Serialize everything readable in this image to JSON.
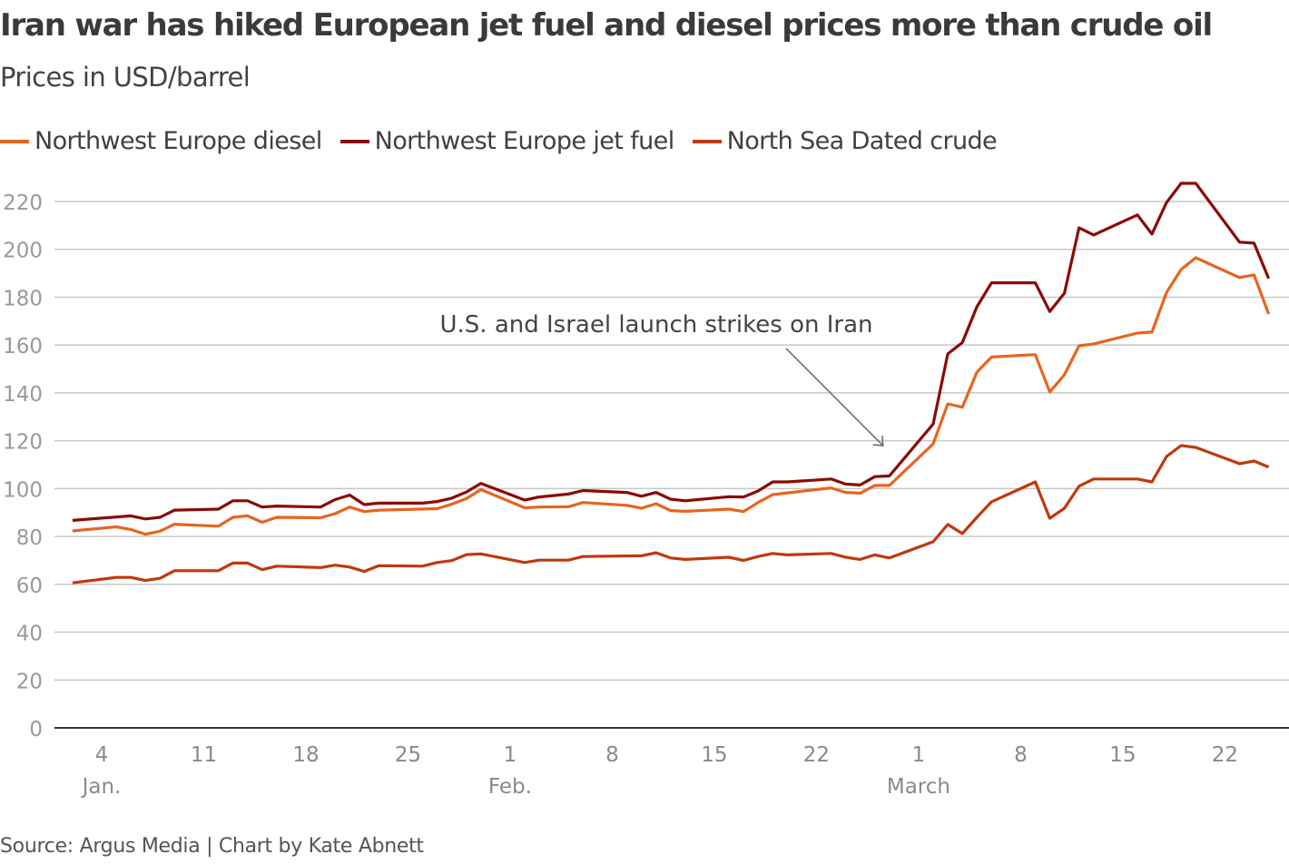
{
  "header": {
    "title": "Iran war has hiked European jet fuel and diesel prices more than crude oil",
    "subtitle": "Prices in USD/barrel"
  },
  "footer": {
    "source": "Source: Argus Media | Chart by Kate Abnett"
  },
  "chart_data": {
    "type": "line",
    "title": "Iran war has hiked European jet fuel and diesel prices more than crude oil",
    "ylabel": "Prices in USD/barrel",
    "ylim": [
      0,
      220
    ],
    "yticks": [
      "0",
      "20",
      "40",
      "60",
      "80",
      "100",
      "120",
      "140",
      "160",
      "180",
      "200",
      "220"
    ],
    "xticks": [
      {
        "date": "Jan 4",
        "label": "4",
        "month": "Jan."
      },
      {
        "date": "Jan 11",
        "label": "11",
        "month": ""
      },
      {
        "date": "Jan 18",
        "label": "18",
        "month": ""
      },
      {
        "date": "Jan 25",
        "label": "25",
        "month": ""
      },
      {
        "date": "Feb 1",
        "label": "1",
        "month": "Feb."
      },
      {
        "date": "Feb 8",
        "label": "8",
        "month": ""
      },
      {
        "date": "Feb 15",
        "label": "15",
        "month": ""
      },
      {
        "date": "Feb 22",
        "label": "22",
        "month": ""
      },
      {
        "date": "Mar 1",
        "label": "1",
        "month": "March"
      },
      {
        "date": "Mar 8",
        "label": "8",
        "month": ""
      },
      {
        "date": "Mar 15",
        "label": "15",
        "month": ""
      },
      {
        "date": "Mar 22",
        "label": "22",
        "month": ""
      }
    ],
    "grid": true,
    "legend": "top-left",
    "annotation": {
      "text": "U.S. and Israel launch strikes on Iran",
      "date": "Feb 27"
    },
    "series": [
      {
        "name": "Northwest Europe diesel",
        "color": "#e8641e",
        "points": [
          [
            "Jan 2",
            82.3
          ],
          [
            "Jan 5",
            84
          ],
          [
            "Jan 6",
            82.9
          ],
          [
            "Jan 7",
            80.9
          ],
          [
            "Jan 8",
            82.2
          ],
          [
            "Jan 9",
            85.1
          ],
          [
            "Jan 12",
            84.3
          ],
          [
            "Jan 13",
            88
          ],
          [
            "Jan 14",
            88.6
          ],
          [
            "Jan 15",
            85.9
          ],
          [
            "Jan 16",
            88
          ],
          [
            "Jan 19",
            87.8
          ],
          [
            "Jan 20",
            89.5
          ],
          [
            "Jan 21",
            92.3
          ],
          [
            "Jan 22",
            90.4
          ],
          [
            "Jan 23",
            91
          ],
          [
            "Jan 27",
            91.6
          ],
          [
            "Jan 28",
            93.5
          ],
          [
            "Jan 29",
            95.8
          ],
          [
            "Jan 30",
            99.6
          ],
          [
            "Feb 2",
            92
          ],
          [
            "Feb 3",
            92.3
          ],
          [
            "Feb 5",
            92.4
          ],
          [
            "Feb 6",
            94.2
          ],
          [
            "Feb 9",
            93
          ],
          [
            "Feb 10",
            91.8
          ],
          [
            "Feb 11",
            93.7
          ],
          [
            "Feb 12",
            90.8
          ],
          [
            "Feb 13",
            90.5
          ],
          [
            "Feb 16",
            91.4
          ],
          [
            "Feb 17",
            90.4
          ],
          [
            "Feb 18",
            94.2
          ],
          [
            "Feb 19",
            97.5
          ],
          [
            "Feb 23",
            100.3
          ],
          [
            "Feb 24",
            98.4
          ],
          [
            "Feb 25",
            98.1
          ],
          [
            "Feb 26",
            101.3
          ],
          [
            "Feb 27",
            101.3
          ],
          [
            "Mar 2",
            118.7
          ],
          [
            "Mar 3",
            135.4
          ],
          [
            "Mar 4",
            134
          ],
          [
            "Mar 5",
            148.7
          ],
          [
            "Mar 6",
            155
          ],
          [
            "Mar 9",
            156
          ],
          [
            "Mar 10",
            140.4
          ],
          [
            "Mar 11",
            147.6
          ],
          [
            "Mar 12",
            159.7
          ],
          [
            "Mar 13",
            160.5
          ],
          [
            "Mar 16",
            165
          ],
          [
            "Mar 17",
            165.4
          ],
          [
            "Mar 18",
            182
          ],
          [
            "Mar 19",
            191.6
          ],
          [
            "Mar 20",
            196.5
          ],
          [
            "Mar 23",
            188.2
          ],
          [
            "Mar 24",
            189.3
          ],
          [
            "Mar 25",
            173
          ]
        ]
      },
      {
        "name": "Northwest Europe jet fuel",
        "color": "#8a0a05",
        "points": [
          [
            "Jan 2",
            86.7
          ],
          [
            "Jan 6",
            88.6
          ],
          [
            "Jan 7",
            87.3
          ],
          [
            "Jan 8",
            88
          ],
          [
            "Jan 9",
            91
          ],
          [
            "Jan 12",
            91.4
          ],
          [
            "Jan 13",
            94.9
          ],
          [
            "Jan 14",
            94.9
          ],
          [
            "Jan 15",
            92.3
          ],
          [
            "Jan 16",
            92.7
          ],
          [
            "Jan 19",
            92.3
          ],
          [
            "Jan 20",
            95.4
          ],
          [
            "Jan 21",
            97.3
          ],
          [
            "Jan 22",
            93.3
          ],
          [
            "Jan 23",
            93.9
          ],
          [
            "Jan 26",
            93.9
          ],
          [
            "Jan 27",
            94.6
          ],
          [
            "Jan 28",
            96
          ],
          [
            "Jan 29",
            98.6
          ],
          [
            "Jan 30",
            102.2
          ],
          [
            "Feb 2",
            95.2
          ],
          [
            "Feb 3",
            96.5
          ],
          [
            "Feb 5",
            97.7
          ],
          [
            "Feb 6",
            99.2
          ],
          [
            "Feb 9",
            98.4
          ],
          [
            "Feb 10",
            96.8
          ],
          [
            "Feb 11",
            98.4
          ],
          [
            "Feb 12",
            95.6
          ],
          [
            "Feb 13",
            94.9
          ],
          [
            "Feb 16",
            96.6
          ],
          [
            "Feb 17",
            96.5
          ],
          [
            "Feb 18",
            99
          ],
          [
            "Feb 19",
            102.8
          ],
          [
            "Feb 20",
            102.8
          ],
          [
            "Feb 23",
            104
          ],
          [
            "Feb 24",
            101.9
          ],
          [
            "Feb 25",
            101.5
          ],
          [
            "Feb 26",
            105
          ],
          [
            "Feb 27",
            105.3
          ],
          [
            "Mar 2",
            127
          ],
          [
            "Mar 3",
            156.3
          ],
          [
            "Mar 4",
            161
          ],
          [
            "Mar 5",
            176
          ],
          [
            "Mar 6",
            186
          ],
          [
            "Mar 9",
            186
          ],
          [
            "Mar 10",
            174
          ],
          [
            "Mar 11",
            181.7
          ],
          [
            "Mar 12",
            209
          ],
          [
            "Mar 13",
            206
          ],
          [
            "Mar 16",
            214.4
          ],
          [
            "Mar 17",
            206.4
          ],
          [
            "Mar 18",
            219.6
          ],
          [
            "Mar 19",
            227.6
          ],
          [
            "Mar 20",
            227.6
          ],
          [
            "Mar 23",
            203
          ],
          [
            "Mar 24",
            202.6
          ],
          [
            "Mar 25",
            187.8
          ]
        ]
      },
      {
        "name": "North Sea Dated crude",
        "color": "#c1380c",
        "points": [
          [
            "Jan 2",
            60.6
          ],
          [
            "Jan 5",
            62.9
          ],
          [
            "Jan 6",
            62.9
          ],
          [
            "Jan 7",
            61.6
          ],
          [
            "Jan 8",
            62.5
          ],
          [
            "Jan 9",
            65.7
          ],
          [
            "Jan 12",
            65.7
          ],
          [
            "Jan 13",
            68.9
          ],
          [
            "Jan 14",
            68.9
          ],
          [
            "Jan 15",
            66.1
          ],
          [
            "Jan 16",
            67.6
          ],
          [
            "Jan 19",
            67
          ],
          [
            "Jan 20",
            68
          ],
          [
            "Jan 21",
            67.2
          ],
          [
            "Jan 22",
            65.4
          ],
          [
            "Jan 23",
            67.8
          ],
          [
            "Jan 26",
            67.6
          ],
          [
            "Jan 27",
            69.1
          ],
          [
            "Jan 28",
            69.9
          ],
          [
            "Jan 29",
            72.4
          ],
          [
            "Jan 30",
            72.7
          ],
          [
            "Feb 2",
            69.1
          ],
          [
            "Feb 3",
            70.1
          ],
          [
            "Feb 5",
            70.1
          ],
          [
            "Feb 6",
            71.6
          ],
          [
            "Feb 10",
            71.9
          ],
          [
            "Feb 11",
            73.2
          ],
          [
            "Feb 12",
            71
          ],
          [
            "Feb 13",
            70.4
          ],
          [
            "Feb 16",
            71.3
          ],
          [
            "Feb 17",
            70
          ],
          [
            "Feb 18",
            71.6
          ],
          [
            "Feb 19",
            72.9
          ],
          [
            "Feb 20",
            72.3
          ],
          [
            "Feb 23",
            72.9
          ],
          [
            "Feb 24",
            71.3
          ],
          [
            "Feb 25",
            70.4
          ],
          [
            "Feb 26",
            72.3
          ],
          [
            "Feb 27",
            71
          ],
          [
            "Mar 2",
            77.8
          ],
          [
            "Mar 3",
            85
          ],
          [
            "Mar 4",
            81.2
          ],
          [
            "Mar 5",
            88
          ],
          [
            "Mar 6",
            94.5
          ],
          [
            "Mar 9",
            102.8
          ],
          [
            "Mar 10",
            87.6
          ],
          [
            "Mar 11",
            91.8
          ],
          [
            "Mar 12",
            101
          ],
          [
            "Mar 13",
            104
          ],
          [
            "Mar 16",
            104
          ],
          [
            "Mar 17",
            102.8
          ],
          [
            "Mar 18",
            113.4
          ],
          [
            "Mar 19",
            118
          ],
          [
            "Mar 20",
            117.2
          ],
          [
            "Mar 23",
            110.4
          ],
          [
            "Mar 24",
            111.5
          ],
          [
            "Mar 25",
            109
          ]
        ]
      }
    ]
  }
}
